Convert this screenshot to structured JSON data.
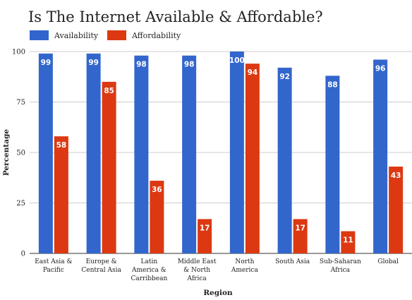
{
  "chart_data": {
    "type": "bar",
    "title": "Is The Internet Available & Affordable?",
    "xlabel": "Region",
    "ylabel": "Percentage",
    "ylim": [
      0,
      100
    ],
    "yticks": [
      0,
      25,
      50,
      75,
      100
    ],
    "grid": true,
    "legend_position": "top-left",
    "categories": [
      [
        "East Asia &",
        "Pacific"
      ],
      [
        "Europe &",
        "Central Asia"
      ],
      [
        "Latin",
        "America &",
        "Carribbean"
      ],
      [
        "Middle East",
        "& North",
        "Africa"
      ],
      [
        "North",
        "America"
      ],
      [
        "South Asia"
      ],
      [
        "Sub-Saharan",
        "Africa"
      ],
      [
        "Global"
      ]
    ],
    "series": [
      {
        "name": "Availability",
        "color": "#3366cc",
        "values": [
          99,
          99,
          98,
          98,
          100,
          92,
          88,
          96
        ]
      },
      {
        "name": "Affordability",
        "color": "#dc3912",
        "values": [
          58,
          85,
          36,
          17,
          94,
          17,
          11,
          43
        ]
      }
    ]
  }
}
